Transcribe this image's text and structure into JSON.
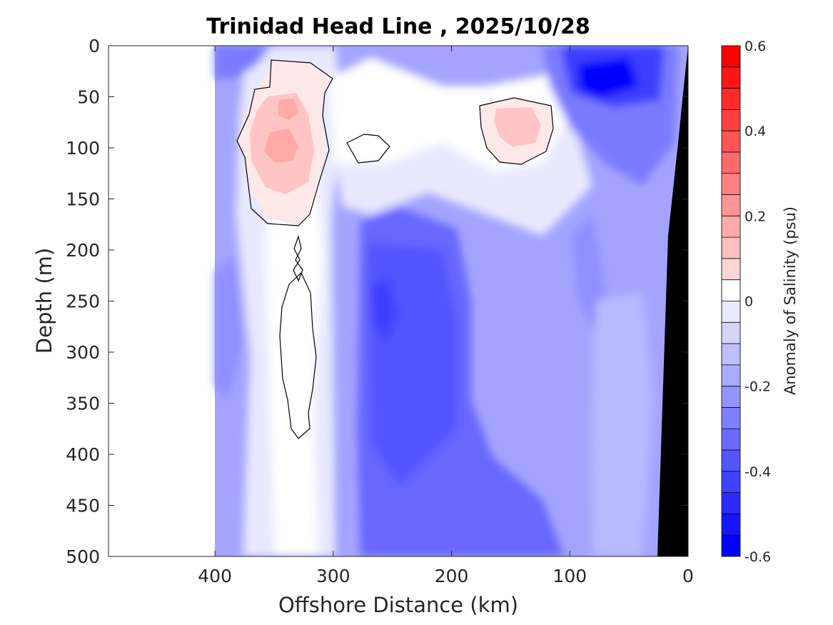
{
  "chart_data": {
    "type": "heatmap",
    "title": "Trinidad Head Line , 2025/10/28",
    "xlabel": "Offshore Distance (km)",
    "ylabel": "Depth (m)",
    "xlim": [
      490,
      0
    ],
    "ylim": [
      0,
      500
    ],
    "x_ticks": [
      "400",
      "300",
      "200",
      "100",
      "0"
    ],
    "x_tick_values": [
      400,
      300,
      200,
      100,
      0
    ],
    "y_ticks": [
      "0",
      "50",
      "100",
      "150",
      "200",
      "250",
      "300",
      "350",
      "400",
      "450",
      "500"
    ],
    "y_tick_values": [
      0,
      50,
      100,
      150,
      200,
      250,
      300,
      350,
      400,
      450,
      500
    ],
    "colorbar": {
      "label": "Anomaly of Salinity (psu)",
      "min": -0.6,
      "max": 0.6,
      "step": 0.05,
      "tick_labels": [
        "0.6",
        "0.4",
        "0.2",
        "0",
        "-0.2",
        "-0.4",
        "-0.6"
      ],
      "tick_values": [
        0.6,
        0.4,
        0.2,
        0,
        -0.2,
        -0.4,
        -0.6
      ],
      "low_color": "#0000ff",
      "mid_color": "#ffffff",
      "high_color": "#ff0000"
    },
    "data_extent_km": [
      400,
      0
    ],
    "bathymetry_color": "#000000",
    "zero_contour_color": "#000000",
    "regions": [
      {
        "name": "offshore positive core",
        "distance_km": 350,
        "depth_m": 100,
        "anomaly": 0.2
      },
      {
        "name": "upper positive lobe",
        "distance_km": 335,
        "depth_m": 65,
        "anomaly": 0.2
      },
      {
        "name": "nearshore positive core",
        "distance_km": 145,
        "depth_m": 80,
        "anomaly": 0.1
      },
      {
        "name": "small zero pocket",
        "distance_km": 272,
        "depth_m": 100,
        "anomaly": 0.0
      },
      {
        "name": "surface fresh core",
        "distance_km": 70,
        "depth_m": 35,
        "anomaly": -0.5
      },
      {
        "name": "mid-depth fresh core",
        "distance_km": 258,
        "depth_m": 270,
        "anomaly": -0.4
      },
      {
        "name": "deep fresh water",
        "distance_km": 200,
        "depth_m": 450,
        "anomaly": -0.35
      },
      {
        "name": "deep near-zero column",
        "distance_km": 330,
        "depth_m": 300,
        "anomaly": 0.0
      }
    ]
  }
}
